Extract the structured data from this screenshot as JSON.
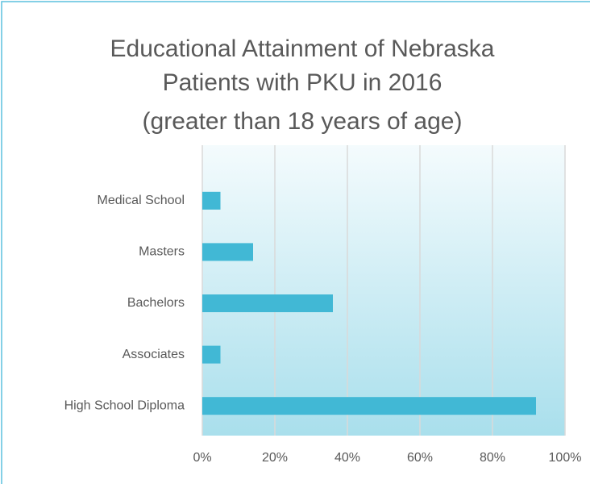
{
  "chart_data": {
    "type": "bar",
    "orientation": "horizontal",
    "title": "Educational Attainment of Nebraska Patients with PKU in 2016",
    "subtitle": "(greater than 18 years of age)",
    "categories": [
      "Medical School",
      "Masters",
      "Bachelors",
      "Associates",
      "High School Diploma"
    ],
    "values": [
      5,
      14,
      36,
      5,
      92
    ],
    "color": "#41b8d5",
    "xlim": [
      0,
      100
    ],
    "xticks": [
      {
        "value": 0,
        "label": "0%"
      },
      {
        "value": 20,
        "label": "20%"
      },
      {
        "value": 40,
        "label": "40%"
      },
      {
        "value": 60,
        "label": "60%"
      },
      {
        "value": 80,
        "label": "80%"
      },
      {
        "value": 100,
        "label": "100%"
      }
    ],
    "grid": true
  }
}
